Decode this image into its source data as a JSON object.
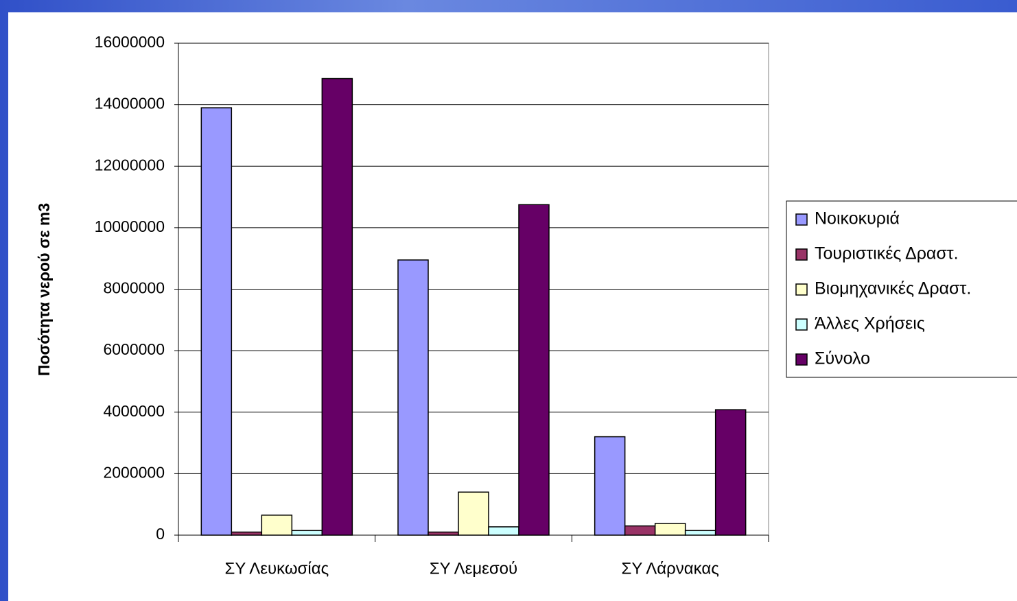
{
  "chart_data": {
    "type": "bar",
    "y_label": "Ποσότητα νερού σε m3",
    "categories": [
      "ΣΥ Λευκωσίας",
      "ΣΥ Λεμεσού",
      "ΣΥ Λάρνακας"
    ],
    "series": [
      {
        "name": "Νοικοκυριά",
        "color": "#9999ff",
        "values": [
          13900000,
          8950000,
          3200000
        ]
      },
      {
        "name": "Τουριστικές Δραστ.",
        "color": "#993366",
        "values": [
          100000,
          100000,
          300000
        ]
      },
      {
        "name": "Βιομηχανικές Δραστ.",
        "color": "#ffffcc",
        "values": [
          650000,
          1400000,
          380000
        ]
      },
      {
        "name": "Άλλες Χρήσεις",
        "color": "#ccffff",
        "values": [
          150000,
          270000,
          150000
        ]
      },
      {
        "name": "Σύνολο",
        "color": "#660066",
        "values": [
          14850000,
          10750000,
          4080000
        ]
      }
    ],
    "ylim": [
      0,
      16000000
    ],
    "yticks": [
      0,
      2000000,
      4000000,
      6000000,
      8000000,
      10000000,
      12000000,
      14000000,
      16000000
    ],
    "grid": true,
    "legend": "right"
  }
}
